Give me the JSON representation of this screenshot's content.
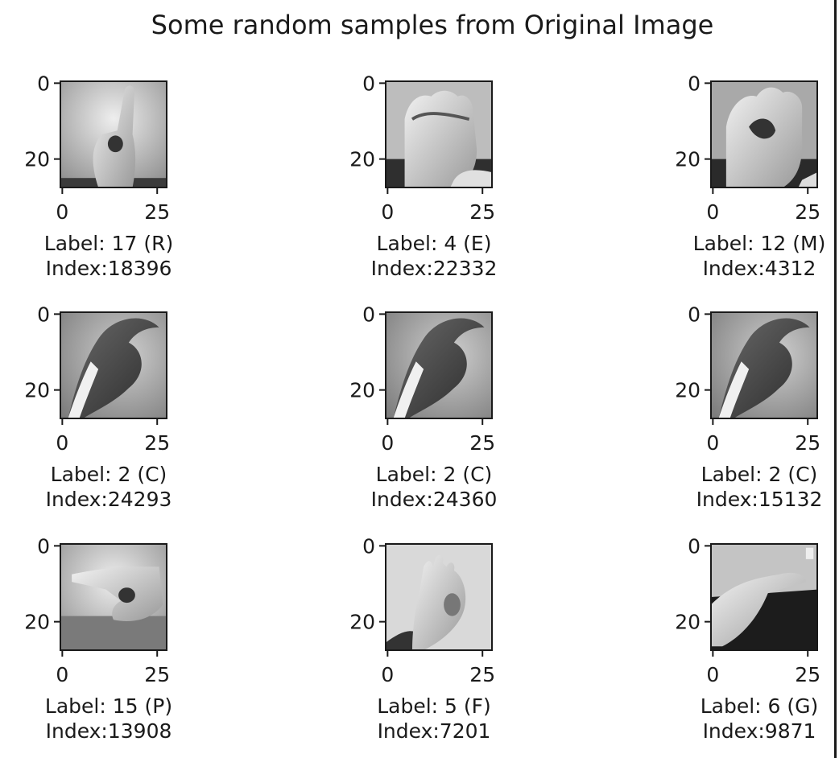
{
  "title": "Some random samples from Original Image",
  "chart_data": [
    {
      "type": "image",
      "row": 0,
      "col": 0,
      "caption": [
        "Label: 17 (R)",
        "Index:18396"
      ],
      "sign": "R",
      "xticks": [
        "0",
        "25"
      ],
      "yticks": [
        "0",
        "20"
      ],
      "xlim": [
        0,
        28
      ],
      "ylim": [
        0,
        28
      ]
    },
    {
      "type": "image",
      "row": 0,
      "col": 1,
      "caption": [
        "Label: 4 (E)",
        "Index:22332"
      ],
      "sign": "E",
      "xticks": [
        "0",
        "25"
      ],
      "yticks": [
        "0",
        "20"
      ],
      "xlim": [
        0,
        28
      ],
      "ylim": [
        0,
        28
      ]
    },
    {
      "type": "image",
      "row": 0,
      "col": 2,
      "caption": [
        "Label: 12 (M)",
        "Index:4312"
      ],
      "sign": "M",
      "xticks": [
        "0",
        "25"
      ],
      "yticks": [
        "0",
        "20"
      ],
      "xlim": [
        0,
        28
      ],
      "ylim": [
        0,
        28
      ]
    },
    {
      "type": "image",
      "row": 1,
      "col": 0,
      "caption": [
        "Label: 2 (C)",
        "Index:24293"
      ],
      "sign": "C",
      "xticks": [
        "0",
        "25"
      ],
      "yticks": [
        "0",
        "20"
      ],
      "xlim": [
        0,
        28
      ],
      "ylim": [
        0,
        28
      ]
    },
    {
      "type": "image",
      "row": 1,
      "col": 1,
      "caption": [
        "Label: 2 (C)",
        "Index:24360"
      ],
      "sign": "C",
      "xticks": [
        "0",
        "25"
      ],
      "yticks": [
        "0",
        "20"
      ],
      "xlim": [
        0,
        28
      ],
      "ylim": [
        0,
        28
      ]
    },
    {
      "type": "image",
      "row": 1,
      "col": 2,
      "caption": [
        "Label: 2 (C)",
        "Index:15132"
      ],
      "sign": "C",
      "xticks": [
        "0",
        "25"
      ],
      "yticks": [
        "0",
        "20"
      ],
      "xlim": [
        0,
        28
      ],
      "ylim": [
        0,
        28
      ]
    },
    {
      "type": "image",
      "row": 2,
      "col": 0,
      "caption": [
        "Label: 15 (P)",
        "Index:13908"
      ],
      "sign": "P",
      "xticks": [
        "0",
        "25"
      ],
      "yticks": [
        "0",
        "20"
      ],
      "xlim": [
        0,
        28
      ],
      "ylim": [
        0,
        28
      ]
    },
    {
      "type": "image",
      "row": 2,
      "col": 1,
      "caption": [
        "Label: 5 (F)",
        "Index:7201"
      ],
      "sign": "F",
      "xticks": [
        "0",
        "25"
      ],
      "yticks": [
        "0",
        "20"
      ],
      "xlim": [
        0,
        28
      ],
      "ylim": [
        0,
        28
      ]
    },
    {
      "type": "image",
      "row": 2,
      "col": 2,
      "caption": [
        "Label: 6 (G)",
        "Index:9871"
      ],
      "sign": "G",
      "xticks": [
        "0",
        "25"
      ],
      "yticks": [
        "0",
        "20"
      ],
      "xlim": [
        0,
        28
      ],
      "ylim": [
        0,
        28
      ]
    }
  ]
}
